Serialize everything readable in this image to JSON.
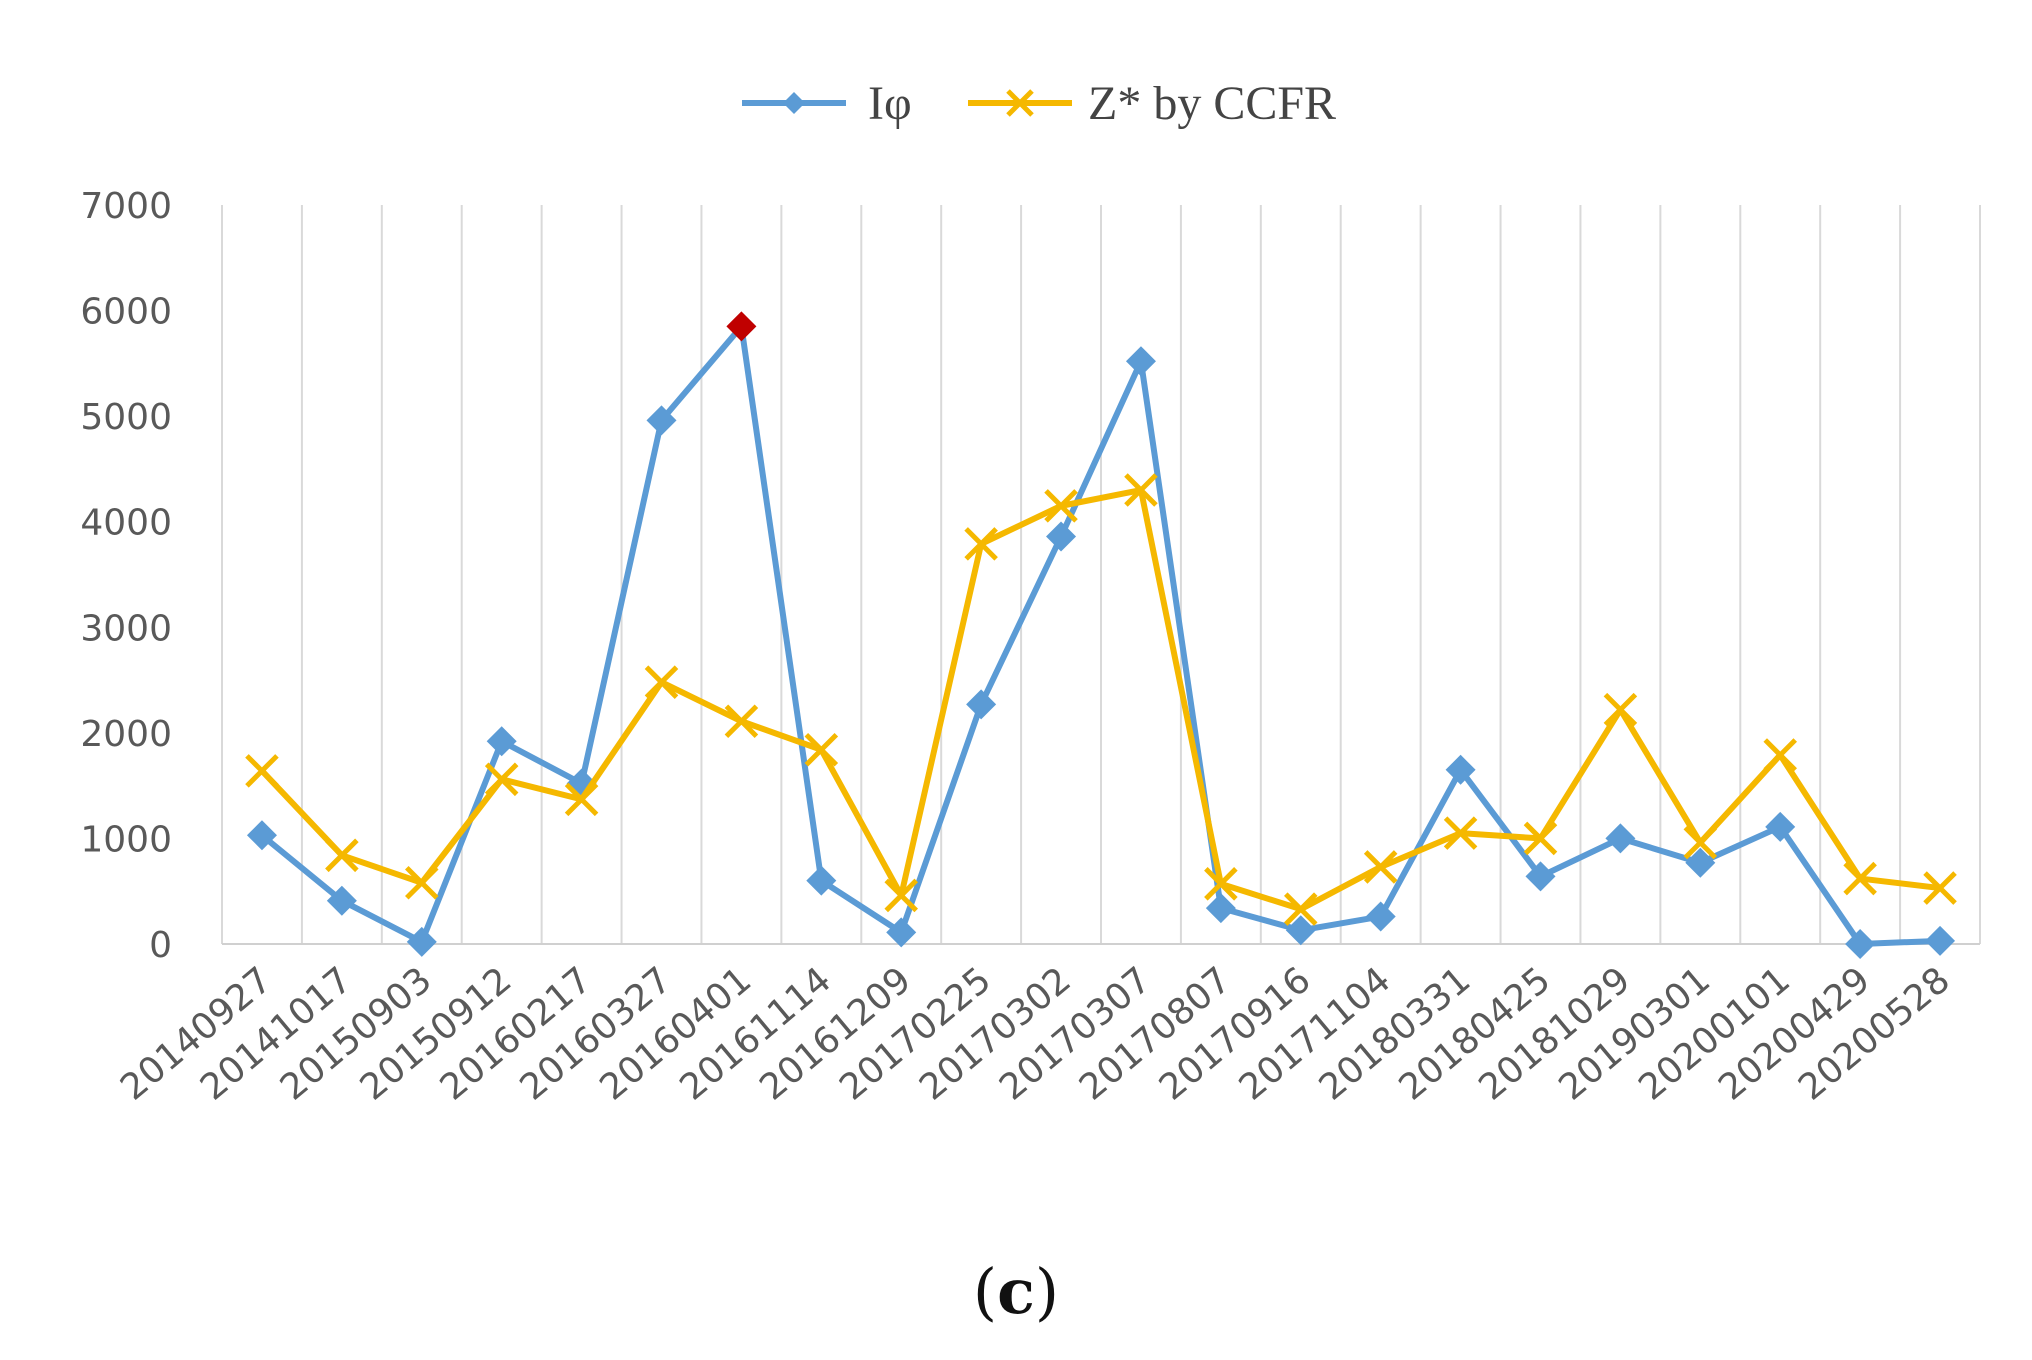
{
  "chart_data": {
    "type": "line",
    "categories": [
      "20140927",
      "20141017",
      "20150903",
      "20150912",
      "20160217",
      "20160327",
      "20160401",
      "20161114",
      "20161209",
      "20170225",
      "20170302",
      "20170307",
      "20170807",
      "20170916",
      "20171104",
      "20180331",
      "20180425",
      "20181029",
      "20190301",
      "20200101",
      "20200429",
      "20200528"
    ],
    "series": [
      {
        "name": "Iφ",
        "color": "#5b9bd5",
        "marker": "diamond",
        "values": [
          1030,
          410,
          20,
          1920,
          1520,
          4960,
          5850,
          600,
          110,
          2270,
          3860,
          5520,
          340,
          130,
          260,
          1650,
          640,
          1000,
          770,
          1110,
          0,
          30
        ],
        "highlight_index": 6,
        "highlight_color": "#c00000"
      },
      {
        "name": "Z* by CCFR",
        "color": "#f5b800",
        "marker": "x",
        "values": [
          1640,
          840,
          580,
          1560,
          1370,
          2480,
          2110,
          1840,
          460,
          3790,
          4150,
          4300,
          570,
          330,
          730,
          1050,
          1000,
          2220,
          960,
          1790,
          620,
          530
        ]
      }
    ],
    "y_ticks": [
      "0",
      "1000",
      "2000",
      "3000",
      "4000",
      "5000",
      "6000",
      "7000"
    ],
    "ylim": [
      0,
      7000
    ],
    "grid": "vertical",
    "legend": "top-center"
  },
  "caption": {
    "open": "(",
    "letter": "c",
    "close": ")"
  }
}
